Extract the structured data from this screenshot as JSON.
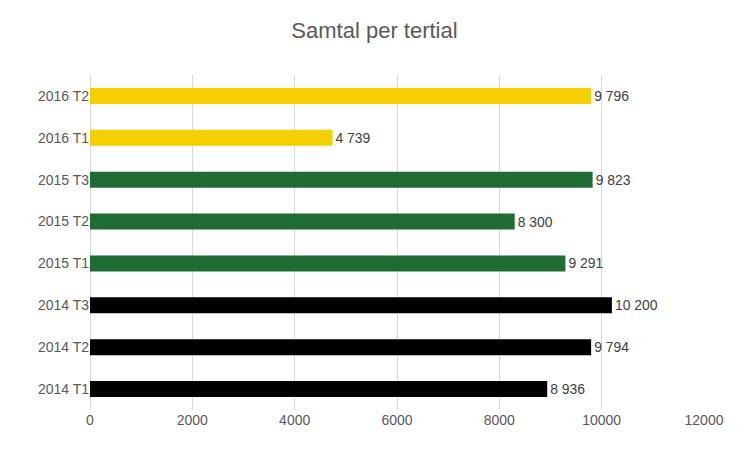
{
  "chart_data": {
    "type": "bar",
    "title": "Samtal per tertial",
    "orientation": "horizontal",
    "categories": [
      "2014 T1",
      "2014 T2",
      "2014 T3",
      "2015 T1",
      "2015 T2",
      "2015 T3",
      "2016 T1",
      "2016 T2"
    ],
    "values": [
      8936,
      9794,
      10200,
      9291,
      8300,
      9823,
      4739,
      9796
    ],
    "value_labels": [
      "8 936",
      "9 794",
      "10 200",
      "9 291",
      "8 300",
      "9 823",
      "4 739",
      "9 796"
    ],
    "colors": [
      "#000000",
      "#000000",
      "#000000",
      "#1e6b34",
      "#1e6b34",
      "#1e6b34",
      "#f5cf00",
      "#f5cf00"
    ],
    "xlim": [
      0,
      12000
    ],
    "xticks": [
      0,
      2000,
      4000,
      6000,
      8000,
      10000,
      12000
    ],
    "grid": true,
    "data_labels": true
  }
}
